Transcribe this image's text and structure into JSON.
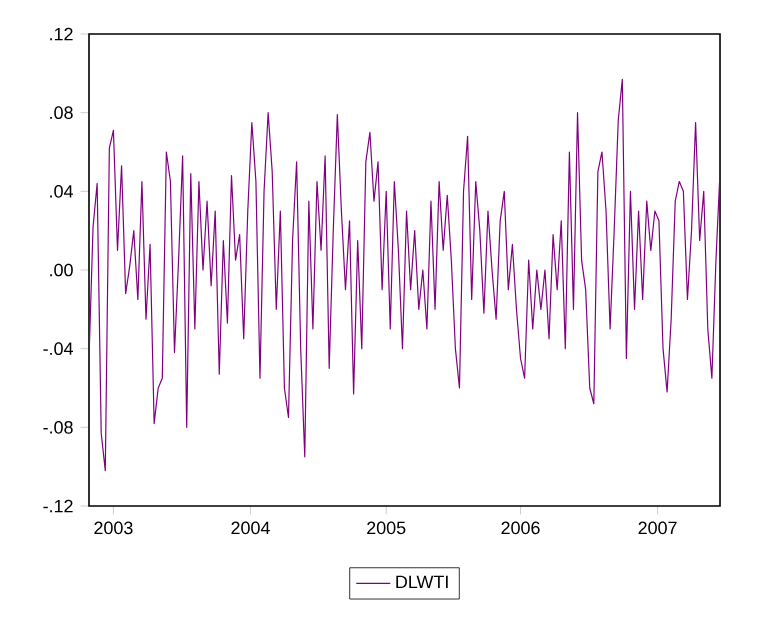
{
  "chart_data": {
    "type": "line",
    "x": [
      2003.0,
      2003.03,
      2003.06,
      2003.09,
      2003.12,
      2003.15,
      2003.18,
      2003.21,
      2003.24,
      2003.27,
      2003.3,
      2003.33,
      2003.36,
      2003.39,
      2003.42,
      2003.45,
      2003.48,
      2003.51,
      2003.54,
      2003.57,
      2003.6,
      2003.63,
      2003.66,
      2003.69,
      2003.72,
      2003.75,
      2003.78,
      2003.81,
      2003.84,
      2003.87,
      2003.9,
      2003.93,
      2003.96,
      2003.99,
      2004.02,
      2004.05,
      2004.08,
      2004.11,
      2004.14,
      2004.17,
      2004.2,
      2004.23,
      2004.26,
      2004.29,
      2004.32,
      2004.35,
      2004.38,
      2004.41,
      2004.44,
      2004.47,
      2004.5,
      2004.53,
      2004.56,
      2004.59,
      2004.62,
      2004.65,
      2004.68,
      2004.71,
      2004.74,
      2004.77,
      2004.8,
      2004.83,
      2004.86,
      2004.89,
      2004.92,
      2004.95,
      2004.98,
      2005.01,
      2005.04,
      2005.07,
      2005.1,
      2005.13,
      2005.16,
      2005.19,
      2005.22,
      2005.25,
      2005.28,
      2005.31,
      2005.34,
      2005.37,
      2005.4,
      2005.43,
      2005.46,
      2005.49,
      2005.52,
      2005.55,
      2005.58,
      2005.61,
      2005.64,
      2005.67,
      2005.7,
      2005.73,
      2005.76,
      2005.79,
      2005.82,
      2005.85,
      2005.88,
      2005.91,
      2005.94,
      2005.97,
      2006.0,
      2006.03,
      2006.06,
      2006.09,
      2006.12,
      2006.15,
      2006.18,
      2006.21,
      2006.24,
      2006.27,
      2006.3,
      2006.33,
      2006.36,
      2006.39,
      2006.42,
      2006.45,
      2006.48,
      2006.51,
      2006.54,
      2006.57,
      2006.6,
      2006.63,
      2006.66,
      2006.69,
      2006.72,
      2006.75,
      2006.78,
      2006.81,
      2006.84,
      2006.87,
      2006.9,
      2006.93,
      2006.96,
      2006.99,
      2007.02,
      2007.05,
      2007.08,
      2007.11,
      2007.14,
      2007.17,
      2007.2,
      2007.23,
      2007.26,
      2007.29,
      2007.32,
      2007.35,
      2007.38,
      2007.41,
      2007.44,
      2007.47,
      2007.5,
      2007.53,
      2007.56,
      2007.59,
      2007.62,
      2007.65
    ],
    "series": [
      {
        "name": "DLWTI",
        "color": "#800080",
        "values": [
          -0.045,
          0.022,
          0.044,
          -0.083,
          -0.102,
          0.062,
          0.071,
          0.01,
          0.053,
          -0.012,
          0.002,
          0.02,
          -0.015,
          0.045,
          -0.025,
          0.013,
          -0.078,
          -0.06,
          -0.055,
          0.06,
          0.045,
          -0.042,
          0.005,
          0.058,
          -0.08,
          0.049,
          -0.03,
          0.045,
          0.0,
          0.035,
          -0.008,
          0.03,
          -0.053,
          0.015,
          -0.027,
          0.048,
          0.005,
          0.018,
          -0.035,
          0.03,
          0.075,
          0.045,
          -0.055,
          0.04,
          0.08,
          0.05,
          -0.02,
          0.03,
          -0.06,
          -0.075,
          0.015,
          0.055,
          -0.04,
          -0.095,
          0.035,
          -0.03,
          0.045,
          0.01,
          0.058,
          -0.05,
          0.02,
          0.079,
          0.03,
          -0.01,
          0.025,
          -0.063,
          0.015,
          -0.04,
          0.055,
          0.07,
          0.035,
          0.055,
          -0.01,
          0.04,
          -0.03,
          0.045,
          0.01,
          -0.04,
          0.03,
          -0.01,
          0.02,
          -0.02,
          0.0,
          -0.03,
          0.035,
          -0.02,
          0.045,
          0.01,
          0.038,
          0.005,
          -0.04,
          -0.06,
          0.04,
          0.068,
          -0.015,
          0.045,
          0.02,
          -0.022,
          0.03,
          0.0,
          -0.025,
          0.025,
          0.04,
          -0.01,
          0.013,
          -0.02,
          -0.045,
          -0.055,
          0.005,
          -0.03,
          0.0,
          -0.02,
          0.0,
          -0.035,
          0.018,
          -0.01,
          0.025,
          -0.04,
          0.06,
          -0.02,
          0.08,
          0.005,
          -0.01,
          -0.06,
          -0.068,
          0.05,
          0.06,
          0.03,
          -0.03,
          0.02,
          0.076,
          0.097,
          -0.045,
          0.04,
          -0.02,
          0.03,
          -0.015,
          0.035,
          0.01,
          0.03,
          0.025,
          -0.04,
          -0.062,
          -0.025,
          0.035,
          0.045,
          0.04,
          -0.015,
          0.02,
          0.075,
          0.015,
          0.04,
          -0.03,
          -0.055,
          0.005,
          0.05
        ]
      }
    ],
    "xlim": [
      2003.0,
      2007.65
    ],
    "ylim": [
      -0.12,
      0.12
    ],
    "xticks": [
      {
        "value": 2003.18,
        "label": "2003"
      },
      {
        "value": 2004.19,
        "label": "2004"
      },
      {
        "value": 2005.19,
        "label": "2005"
      },
      {
        "value": 2006.18,
        "label": "2006"
      },
      {
        "value": 2007.19,
        "label": "2007"
      }
    ],
    "yticks": [
      {
        "value": -0.12,
        "label": "-.12"
      },
      {
        "value": -0.08,
        "label": "-.08"
      },
      {
        "value": -0.04,
        "label": "-.04"
      },
      {
        "value": 0.0,
        "label": ".00"
      },
      {
        "value": 0.04,
        "label": ".04"
      },
      {
        "value": 0.08,
        "label": ".08"
      },
      {
        "value": 0.12,
        "label": ".12"
      }
    ],
    "legend": "bottom"
  }
}
